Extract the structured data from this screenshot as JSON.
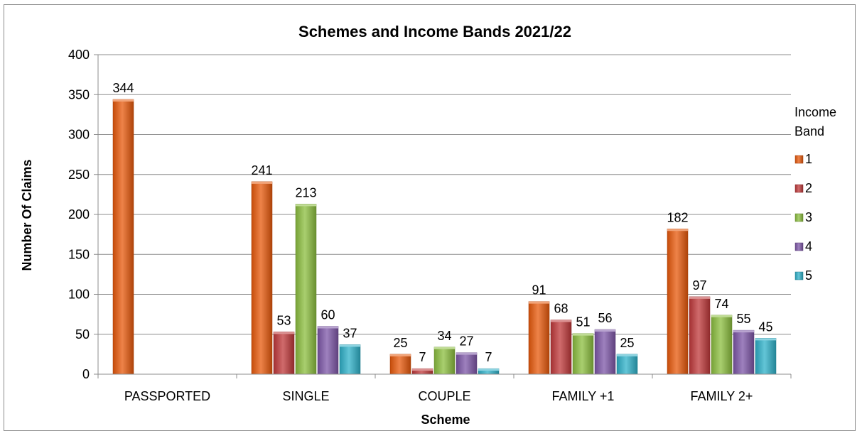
{
  "chart_data": {
    "type": "bar",
    "title": "Schemes and Income Bands 2021/22",
    "xlabel": "Scheme",
    "ylabel": "Number Of Claims",
    "ylim": [
      0,
      400
    ],
    "ytick_step": 50,
    "grid": true,
    "legend_title_line1": "Income",
    "legend_title_line2": "Band",
    "legend_position": "right",
    "categories": [
      "PASSPORTED",
      "SINGLE",
      "COUPLE",
      "FAMILY +1",
      "FAMILY 2+"
    ],
    "series": [
      {
        "name": "1",
        "color": "#e8590c",
        "values": [
          344,
          241,
          25,
          91,
          182
        ]
      },
      {
        "name": "2",
        "color": "#c0393b",
        "values": [
          null,
          53,
          7,
          68,
          97
        ]
      },
      {
        "name": "3",
        "color": "#8cbf3f",
        "values": [
          null,
          213,
          34,
          51,
          74
        ]
      },
      {
        "name": "4",
        "color": "#7e57a8",
        "values": [
          null,
          60,
          27,
          56,
          55
        ]
      },
      {
        "name": "5",
        "color": "#2fb1c9",
        "values": [
          null,
          37,
          7,
          25,
          45
        ]
      }
    ]
  }
}
